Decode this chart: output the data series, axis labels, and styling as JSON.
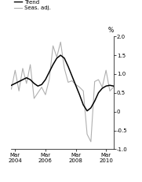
{
  "ylabel": "%",
  "ylim": [
    -1.0,
    2.0
  ],
  "yticks": [
    -1.0,
    -0.5,
    0.0,
    0.5,
    1.0,
    1.5,
    2.0
  ],
  "ytick_labels": [
    "-1.0",
    "-0.5",
    "0",
    "0.5",
    "1.0",
    "1.5",
    "2.0"
  ],
  "trend_color": "#000000",
  "seas_color": "#b0b0b0",
  "background_color": "#ffffff",
  "legend_items": [
    "Trend",
    "Seas. adj."
  ],
  "trend": [
    0.7,
    0.75,
    0.8,
    0.85,
    0.9,
    0.85,
    0.75,
    0.68,
    0.72,
    0.85,
    1.05,
    1.25,
    1.42,
    1.5,
    1.42,
    1.2,
    0.95,
    0.7,
    0.45,
    0.18,
    0.02,
    0.1,
    0.28,
    0.5,
    0.62,
    0.68,
    0.7,
    0.68
  ],
  "seas_adj": [
    0.6,
    1.1,
    0.55,
    1.15,
    0.75,
    1.25,
    0.35,
    0.5,
    0.65,
    0.45,
    0.85,
    1.75,
    1.45,
    1.85,
    1.15,
    0.78,
    0.82,
    0.72,
    0.65,
    0.55,
    -0.6,
    -0.8,
    0.8,
    0.85,
    0.65,
    1.1,
    0.55,
    0.65
  ],
  "xtick_positions": [
    1,
    9,
    17,
    25
  ],
  "xtick_labels": [
    "Mar\n2004",
    "Mar\n2006",
    "Mar\n2008",
    "Mar\n2010"
  ],
  "n_points": 28,
  "xlim": [
    0,
    27
  ]
}
